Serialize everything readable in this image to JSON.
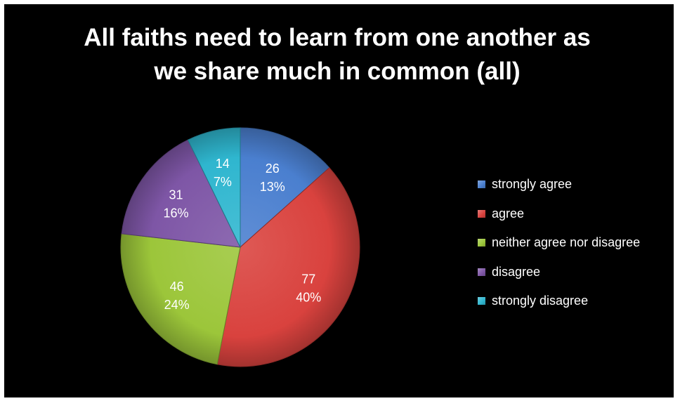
{
  "chart_data": {
    "type": "pie",
    "title_lines": [
      "All faiths need to learn from one another as",
      "we share much in common (all)"
    ],
    "categories": [
      "strongly agree",
      "agree",
      "neither agree nor disagree",
      "disagree",
      "strongly disagree"
    ],
    "values": [
      26,
      77,
      46,
      31,
      14
    ],
    "percent_labels": [
      "13%",
      "40%",
      "24%",
      "16%",
      "7%"
    ],
    "colors": [
      "#4a7fcf",
      "#d9423e",
      "#9cc63a",
      "#7e56a6",
      "#2fb6cf"
    ],
    "legend_position": "right",
    "start_angle": "12 o'clock, clockwise"
  }
}
